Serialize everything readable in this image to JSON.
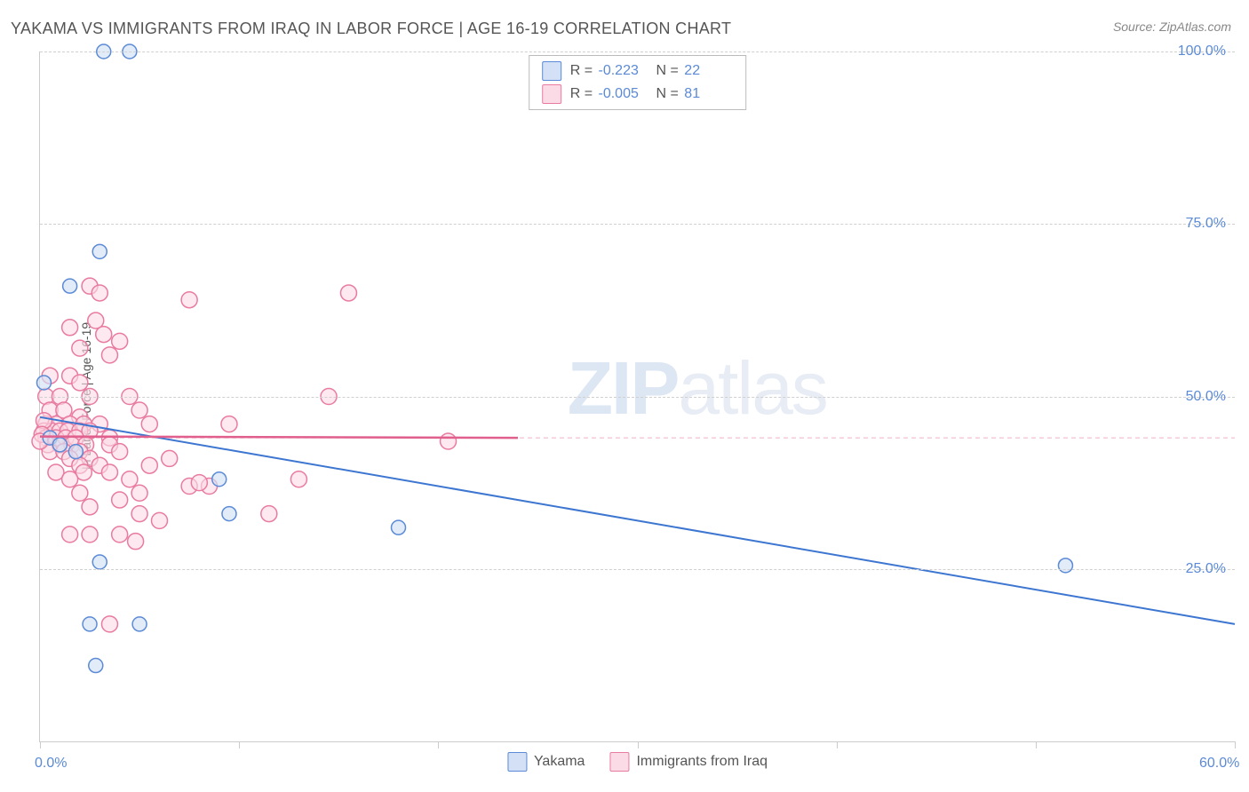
{
  "title": "YAKAMA VS IMMIGRANTS FROM IRAQ IN LABOR FORCE | AGE 16-19 CORRELATION CHART",
  "source": "Source: ZipAtlas.com",
  "ylabel": "In Labor Force | Age 16-19",
  "watermark_prefix": "ZIP",
  "watermark_suffix": "atlas",
  "chart": {
    "type": "scatter",
    "xlim": [
      0,
      60
    ],
    "ylim": [
      0,
      100
    ],
    "x_ticks": [
      0,
      10,
      20,
      30,
      40,
      50,
      60
    ],
    "x_labels_shown": {
      "0": "0.0%",
      "60": "60.0%"
    },
    "y_gridlines": [
      25,
      50,
      75,
      100
    ],
    "y_labels": {
      "25": "25.0%",
      "50": "50.0%",
      "75": "75.0%",
      "100": "100.0%"
    },
    "y_dashed_pink": 44,
    "grid_color": "#d0d0d0",
    "axis_color": "#cccccc",
    "label_color": "#5b8ad6",
    "label_fontsize": 16,
    "title_fontsize": 18,
    "title_color": "#555555",
    "background_color": "#ffffff",
    "marker_radius_blue": 8,
    "marker_radius_pink": 9,
    "marker_radius_pink_small": 7,
    "series": [
      {
        "name": "Yakama",
        "color_fill": "#d3e0f5",
        "color_stroke": "#5b8ad6",
        "fill_opacity": 0.65,
        "R": "-0.223",
        "N": "22",
        "trend": {
          "x1": 0,
          "y1": 47,
          "x2": 60,
          "y2": 17,
          "color": "#3d76d1",
          "width": 2
        },
        "points": [
          [
            3.2,
            100
          ],
          [
            4.5,
            100
          ],
          [
            3.0,
            71
          ],
          [
            1.5,
            66
          ],
          [
            0.2,
            52
          ],
          [
            0.5,
            44
          ],
          [
            1.0,
            43
          ],
          [
            1.8,
            42
          ],
          [
            9.0,
            38
          ],
          [
            9.5,
            33
          ],
          [
            18.0,
            31
          ],
          [
            3.0,
            26
          ],
          [
            51.5,
            25.5
          ],
          [
            2.5,
            17
          ],
          [
            5.0,
            17
          ],
          [
            2.8,
            11
          ]
        ]
      },
      {
        "name": "Immigrants from Iraq",
        "color_fill": "#fbdbe5",
        "color_stroke": "#e97ba1",
        "fill_opacity": 0.6,
        "R": "-0.005",
        "N": "81",
        "trend": {
          "x1": 0,
          "y1": 44.2,
          "x2": 24,
          "y2": 44.0,
          "color": "#e05f8d",
          "width": 2.5
        },
        "points": [
          [
            2.5,
            66
          ],
          [
            3.0,
            65
          ],
          [
            7.5,
            64
          ],
          [
            15.5,
            65
          ],
          [
            1.5,
            60
          ],
          [
            2.8,
            61
          ],
          [
            3.2,
            59
          ],
          [
            2.0,
            57
          ],
          [
            3.5,
            56
          ],
          [
            4.0,
            58
          ],
          [
            0.5,
            53
          ],
          [
            1.5,
            53
          ],
          [
            2.0,
            52
          ],
          [
            0.3,
            50
          ],
          [
            1.0,
            50
          ],
          [
            2.5,
            50
          ],
          [
            4.5,
            50
          ],
          [
            14.5,
            50
          ],
          [
            0.5,
            48
          ],
          [
            1.2,
            48
          ],
          [
            2.0,
            47
          ],
          [
            5.0,
            48
          ],
          [
            0.3,
            46
          ],
          [
            0.8,
            46
          ],
          [
            1.5,
            46
          ],
          [
            2.2,
            46
          ],
          [
            3.0,
            46
          ],
          [
            5.5,
            46
          ],
          [
            9.5,
            46
          ],
          [
            0.2,
            45
          ],
          [
            0.6,
            45
          ],
          [
            1.0,
            45
          ],
          [
            1.4,
            45
          ],
          [
            2.0,
            45
          ],
          [
            2.5,
            45
          ],
          [
            0.3,
            44
          ],
          [
            0.8,
            44
          ],
          [
            1.3,
            44
          ],
          [
            1.8,
            44
          ],
          [
            3.5,
            44
          ],
          [
            20.5,
            43.5
          ],
          [
            0.4,
            43
          ],
          [
            1.0,
            43
          ],
          [
            1.6,
            43
          ],
          [
            2.3,
            43
          ],
          [
            3.5,
            43
          ],
          [
            0.5,
            42
          ],
          [
            1.2,
            42
          ],
          [
            2.0,
            42
          ],
          [
            4.0,
            42
          ],
          [
            1.5,
            41
          ],
          [
            2.5,
            41
          ],
          [
            6.5,
            41
          ],
          [
            2.0,
            40
          ],
          [
            3.0,
            40
          ],
          [
            5.5,
            40
          ],
          [
            0.8,
            39
          ],
          [
            2.2,
            39
          ],
          [
            3.5,
            39
          ],
          [
            1.5,
            38
          ],
          [
            4.5,
            38
          ],
          [
            7.5,
            37
          ],
          [
            8.5,
            37
          ],
          [
            13.0,
            38
          ],
          [
            2.0,
            36
          ],
          [
            5.0,
            36
          ],
          [
            8.0,
            37.5
          ],
          [
            2.5,
            34
          ],
          [
            4.0,
            35
          ],
          [
            11.5,
            33
          ],
          [
            5.0,
            33
          ],
          [
            6.0,
            32
          ],
          [
            1.5,
            30
          ],
          [
            2.5,
            30
          ],
          [
            4.0,
            30
          ],
          [
            4.8,
            29
          ],
          [
            0.2,
            46.5
          ],
          [
            0.1,
            44.5
          ],
          [
            0.0,
            43.5
          ],
          [
            3.5,
            17
          ]
        ]
      }
    ],
    "bottom_legend": [
      {
        "swatch": "blue",
        "label": "Yakama"
      },
      {
        "swatch": "pink",
        "label": "Immigrants from Iraq"
      }
    ]
  }
}
